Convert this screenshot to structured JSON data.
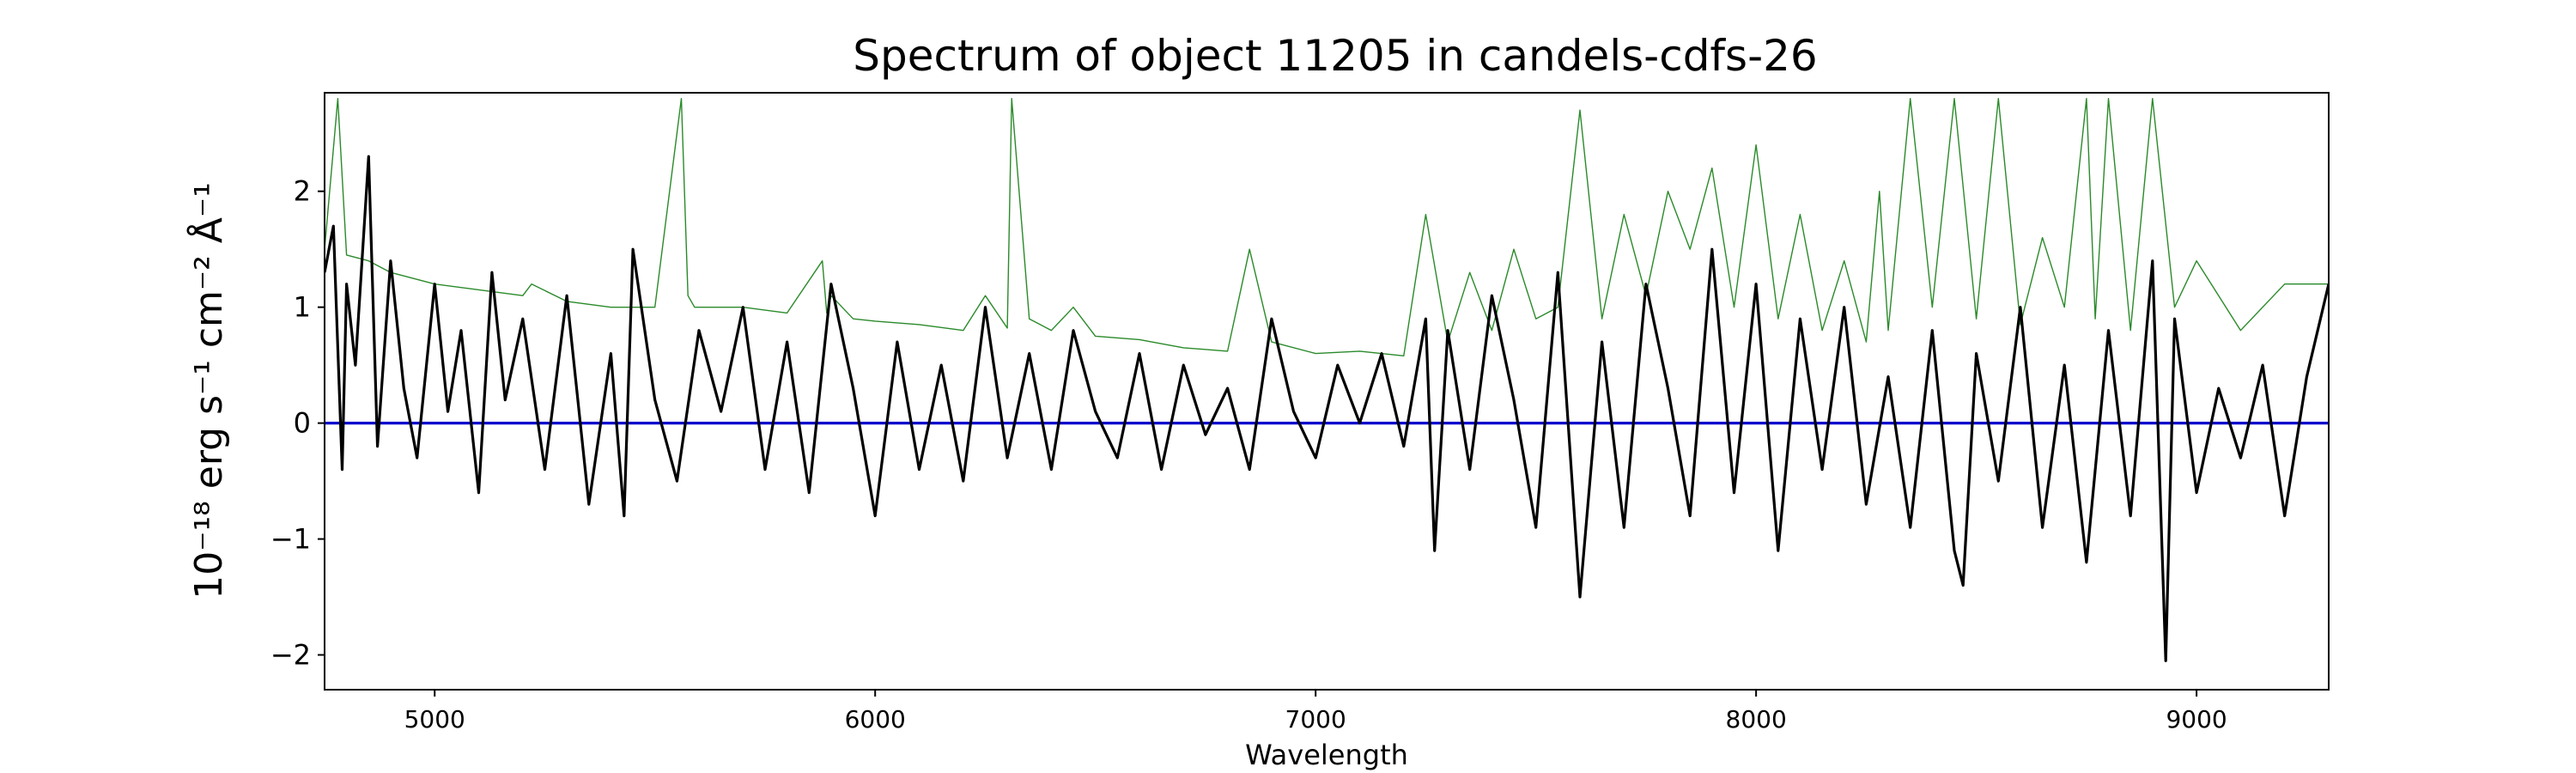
{
  "chart_data": {
    "type": "line",
    "title": "Spectrum of object 11205 in candels-cdfs-26",
    "xlabel": "Wavelength",
    "ylabel": "10⁻¹⁸ erg s⁻¹ cm⁻² Å⁻¹",
    "xlim": [
      4750,
      9300
    ],
    "ylim": [
      -2.3,
      2.85
    ],
    "x_ticks": [
      5000,
      6000,
      7000,
      8000,
      9000
    ],
    "x_tick_labels": [
      "5000",
      "6000",
      "7000",
      "8000",
      "9000"
    ],
    "y_ticks": [
      -2,
      -1,
      0,
      1,
      2
    ],
    "y_tick_labels": [
      "−2",
      "−1",
      "0",
      "1",
      "2"
    ],
    "grid": false,
    "legend": "none",
    "series": [
      {
        "color": "#2a8a2a",
        "line_width": "thin",
        "x": [
          4750,
          4780,
          4800,
          4850,
          4900,
          5000,
          5100,
          5200,
          5220,
          5300,
          5400,
          5500,
          5560,
          5575,
          5590,
          5700,
          5800,
          5880,
          5890,
          5900,
          5950,
          6000,
          6100,
          6200,
          6250,
          6300,
          6310,
          6350,
          6400,
          6450,
          6500,
          6600,
          6700,
          6800,
          6850,
          6900,
          7000,
          7100,
          7200,
          7250,
          7300,
          7350,
          7400,
          7450,
          7500,
          7550,
          7600,
          7650,
          7700,
          7750,
          7800,
          7850,
          7900,
          7950,
          8000,
          8050,
          8100,
          8150,
          8200,
          8250,
          8280,
          8300,
          8350,
          8400,
          8450,
          8500,
          8550,
          8600,
          8650,
          8700,
          8750,
          8770,
          8800,
          8850,
          8900,
          8950,
          9000,
          9100,
          9200,
          9300
        ],
        "y": [
          1.5,
          2.8,
          1.45,
          1.4,
          1.3,
          1.2,
          1.15,
          1.1,
          1.2,
          1.05,
          1.0,
          1.0,
          2.8,
          1.1,
          1.0,
          1.0,
          0.95,
          1.4,
          0.95,
          1.1,
          0.9,
          0.88,
          0.85,
          0.8,
          1.1,
          0.82,
          2.8,
          0.9,
          0.8,
          1.0,
          0.75,
          0.72,
          0.65,
          0.62,
          1.5,
          0.7,
          0.6,
          0.62,
          0.58,
          1.8,
          0.7,
          1.3,
          0.8,
          1.5,
          0.9,
          1.0,
          2.7,
          0.9,
          1.8,
          1.1,
          2.0,
          1.5,
          2.2,
          1.0,
          2.4,
          0.9,
          1.8,
          0.8,
          1.4,
          0.7,
          2.0,
          0.8,
          2.8,
          1.0,
          2.8,
          0.9,
          2.8,
          0.85,
          1.6,
          1.0,
          2.8,
          0.9,
          2.8,
          0.8,
          2.8,
          1.0,
          1.4,
          0.8,
          1.2,
          1.2
        ]
      },
      {
        "color": "#0000cc",
        "line_width": "medium",
        "x": [
          4750,
          9300
        ],
        "y": [
          0,
          0
        ]
      },
      {
        "color": "#000000",
        "line_width": "medium",
        "x": [
          4750,
          4770,
          4790,
          4800,
          4820,
          4850,
          4870,
          4900,
          4930,
          4960,
          5000,
          5030,
          5060,
          5100,
          5130,
          5160,
          5200,
          5250,
          5300,
          5350,
          5400,
          5430,
          5450,
          5500,
          5550,
          5600,
          5650,
          5700,
          5750,
          5800,
          5850,
          5900,
          5950,
          6000,
          6050,
          6100,
          6150,
          6200,
          6250,
          6300,
          6350,
          6400,
          6450,
          6500,
          6550,
          6600,
          6650,
          6700,
          6750,
          6800,
          6850,
          6900,
          6950,
          7000,
          7050,
          7100,
          7150,
          7200,
          7250,
          7270,
          7300,
          7350,
          7400,
          7450,
          7500,
          7550,
          7600,
          7650,
          7700,
          7750,
          7800,
          7850,
          7900,
          7950,
          8000,
          8050,
          8100,
          8150,
          8200,
          8250,
          8300,
          8350,
          8400,
          8450,
          8470,
          8500,
          8550,
          8600,
          8650,
          8700,
          8750,
          8800,
          8850,
          8900,
          8930,
          8950,
          9000,
          9050,
          9100,
          9150,
          9200,
          9250,
          9300
        ],
        "y": [
          1.3,
          1.7,
          -0.4,
          1.2,
          0.5,
          2.3,
          -0.2,
          1.4,
          0.3,
          -0.3,
          1.2,
          0.1,
          0.8,
          -0.6,
          1.3,
          0.2,
          0.9,
          -0.4,
          1.1,
          -0.7,
          0.6,
          -0.8,
          1.5,
          0.2,
          -0.5,
          0.8,
          0.1,
          1.0,
          -0.4,
          0.7,
          -0.6,
          1.2,
          0.3,
          -0.8,
          0.7,
          -0.4,
          0.5,
          -0.5,
          1.0,
          -0.3,
          0.6,
          -0.4,
          0.8,
          0.1,
          -0.3,
          0.6,
          -0.4,
          0.5,
          -0.1,
          0.3,
          -0.4,
          0.9,
          0.1,
          -0.3,
          0.5,
          0.0,
          0.6,
          -0.2,
          0.9,
          -1.1,
          0.8,
          -0.4,
          1.1,
          0.2,
          -0.9,
          1.3,
          -1.5,
          0.7,
          -0.9,
          1.2,
          0.3,
          -0.8,
          1.5,
          -0.6,
          1.2,
          -1.1,
          0.9,
          -0.4,
          1.0,
          -0.7,
          0.4,
          -0.9,
          0.8,
          -1.1,
          -1.4,
          0.6,
          -0.5,
          1.0,
          -0.9,
          0.5,
          -1.2,
          0.8,
          -0.8,
          1.4,
          -2.05,
          0.9,
          -0.6,
          0.3,
          -0.3,
          0.5,
          -0.8,
          0.4,
          1.2
        ]
      }
    ]
  }
}
